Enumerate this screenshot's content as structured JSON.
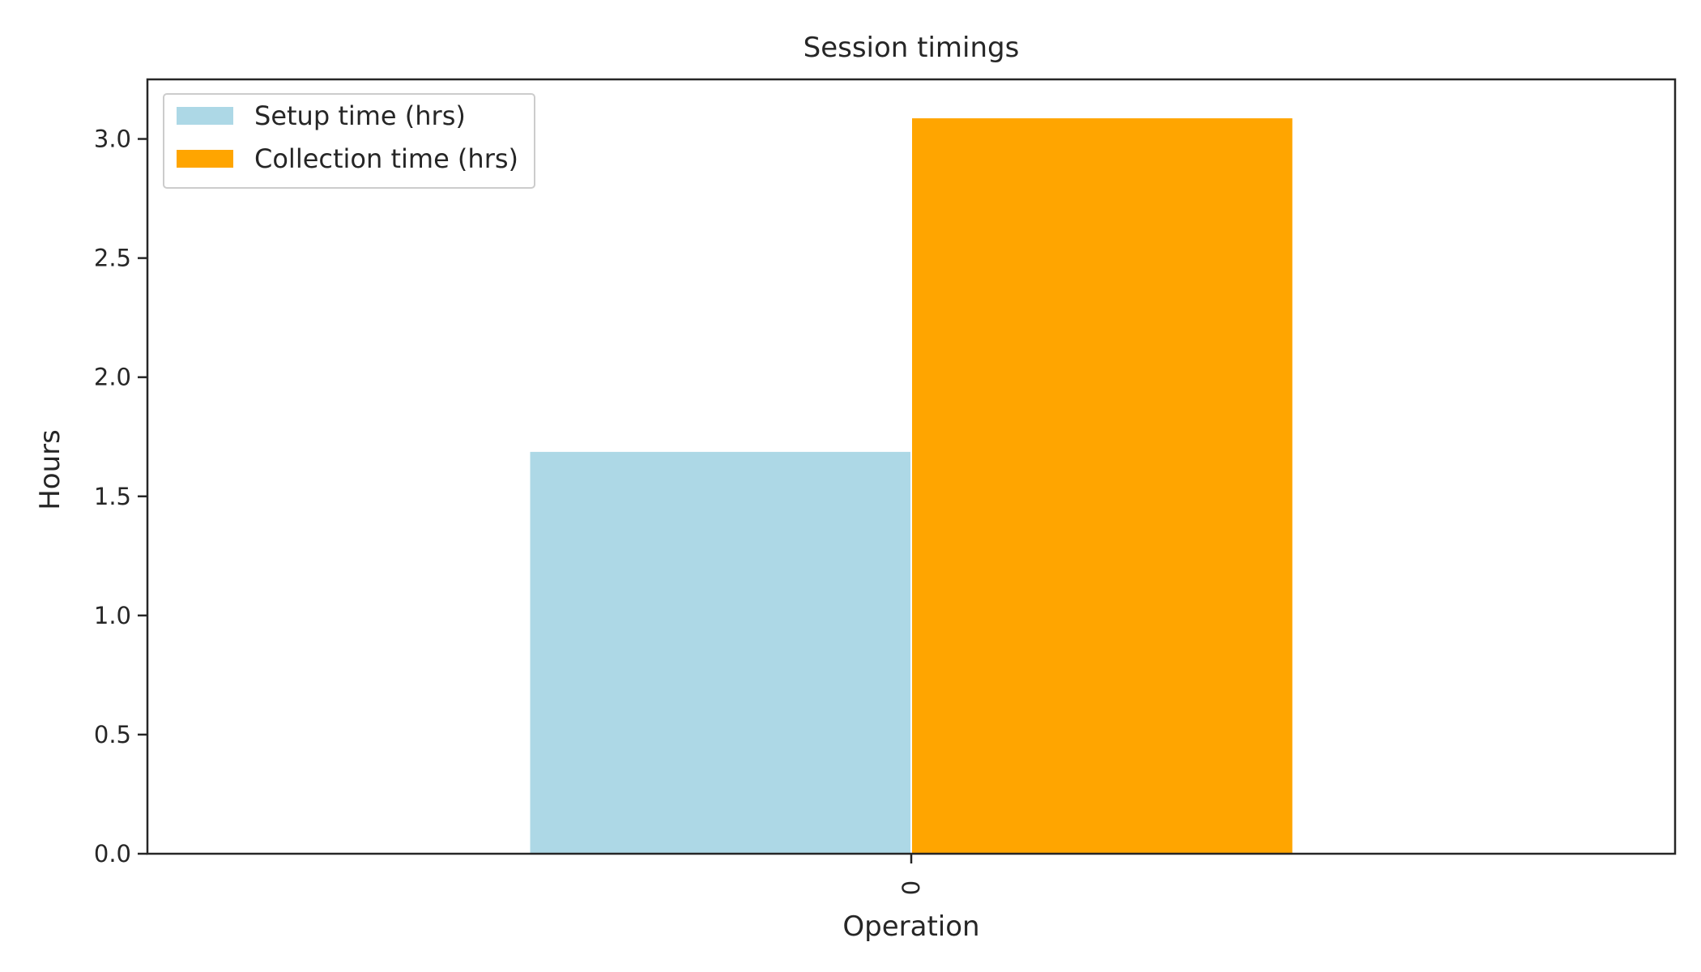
{
  "chart_data": {
    "type": "bar",
    "title": "Session timings",
    "xlabel": "Operation",
    "ylabel": "Hours",
    "categories": [
      "0"
    ],
    "series": [
      {
        "name": "Setup time (hrs)",
        "values": [
          1.69
        ],
        "color": "#add8e6"
      },
      {
        "name": "Collection time (hrs)",
        "values": [
          3.09
        ],
        "color": "#ffa500"
      }
    ],
    "ylim": [
      0,
      3.25
    ],
    "yticks": [
      0.0,
      0.5,
      1.0,
      1.5,
      2.0,
      2.5,
      3.0
    ],
    "yticklabels": [
      "0.0",
      "0.5",
      "1.0",
      "1.5",
      "2.0",
      "2.5",
      "3.0"
    ],
    "grid": false,
    "legend_position": "top-left"
  }
}
